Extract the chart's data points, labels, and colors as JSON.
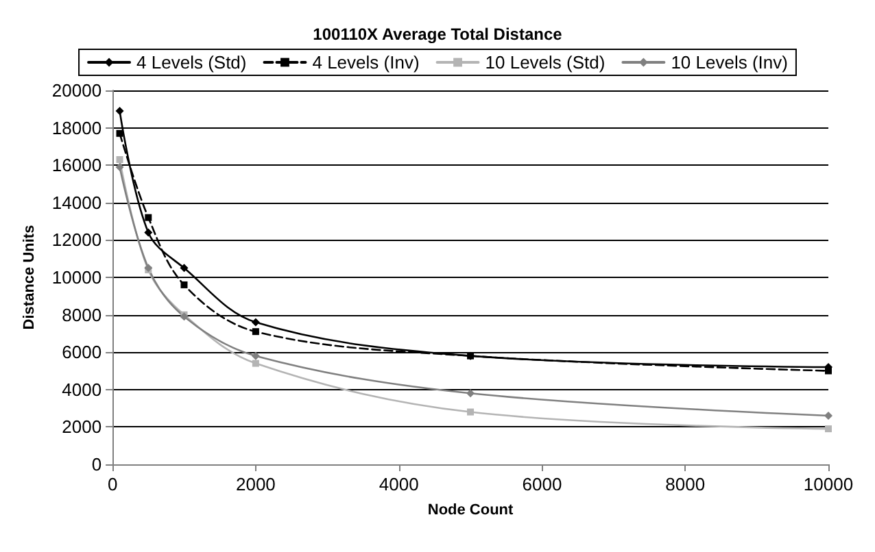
{
  "chart_data": {
    "type": "line",
    "title": "100110X Average Total Distance",
    "xlabel": "Node Count",
    "ylabel": "Distance Units",
    "x": [
      100,
      500,
      1000,
      2000,
      5000,
      10000
    ],
    "series": [
      {
        "name": "4 Levels (Std)",
        "color": "#000000",
        "marker": "diamond",
        "line_style": "solid",
        "values": [
          18900,
          12400,
          10500,
          7600,
          5800,
          5200
        ]
      },
      {
        "name": "4 Levels (Inv)",
        "color": "#000000",
        "marker": "square",
        "line_style": "dashed",
        "values": [
          17700,
          13200,
          9600,
          7100,
          5800,
          5000
        ]
      },
      {
        "name": "10 Levels (Std)",
        "color": "#b4b4b4",
        "marker": "square",
        "line_style": "solid",
        "values": [
          16300,
          10400,
          8000,
          5400,
          2800,
          1900
        ]
      },
      {
        "name": "10 Levels (Inv)",
        "color": "#808080",
        "marker": "diamond",
        "line_style": "solid",
        "values": [
          15900,
          10500,
          7900,
          5800,
          3800,
          2600
        ]
      }
    ],
    "xlim": [
      0,
      10000
    ],
    "xticks": [
      0,
      2000,
      4000,
      6000,
      8000,
      10000
    ],
    "ylim": [
      0,
      20000
    ],
    "yticks": [
      0,
      2000,
      4000,
      6000,
      8000,
      10000,
      12000,
      14000,
      16000,
      18000,
      20000
    ],
    "grid": "y",
    "legend": "top"
  }
}
